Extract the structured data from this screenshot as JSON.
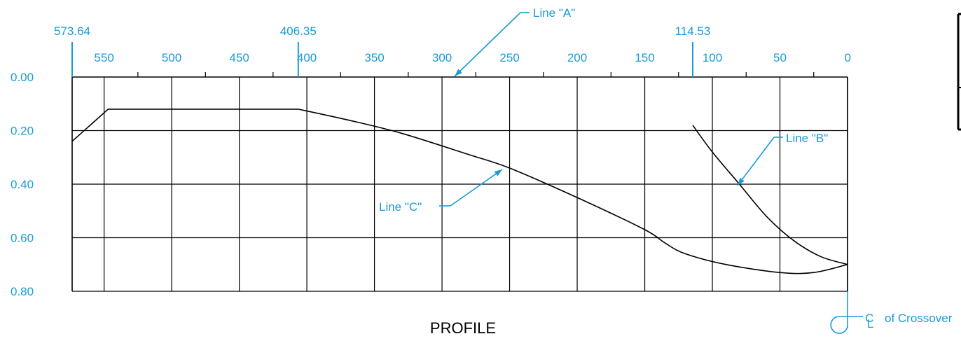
{
  "colors": {
    "annotation": "#1a9bd7",
    "ink": "#000000",
    "background": "#ffffff"
  },
  "profile": {
    "title": "PROFILE",
    "x_ticks": [
      550,
      500,
      450,
      400,
      350,
      300,
      250,
      200,
      150,
      100,
      50,
      0
    ],
    "x_tick_labels": [
      "550",
      "500",
      "450",
      "400",
      "350",
      "300",
      "250",
      "200",
      "150",
      "100",
      "50",
      "0"
    ],
    "y_ticks": [
      0.0,
      0.2,
      0.4,
      0.6,
      0.8
    ],
    "y_tick_labels": [
      "0.00",
      "0.20",
      "0.40",
      "0.60",
      "0.80"
    ],
    "x_range": [
      573.64,
      0
    ],
    "y_range": [
      0.0,
      0.8
    ],
    "station_marks": [
      {
        "value": 573.64,
        "label": "573.64"
      },
      {
        "value": 406.35,
        "label": "406.35"
      },
      {
        "value": 114.53,
        "label": "114.53"
      }
    ],
    "lines": [
      {
        "label": "Line \"C\"",
        "points": [
          [
            573.64,
            0.24
          ],
          [
            547,
            0.12
          ],
          [
            406.35,
            0.12
          ],
          [
            370,
            0.16
          ],
          [
            330,
            0.21
          ],
          [
            280,
            0.29
          ],
          [
            250,
            0.34
          ],
          [
            200,
            0.45
          ],
          [
            150,
            0.57
          ],
          [
            135,
            0.62
          ],
          [
            120,
            0.66
          ],
          [
            90,
            0.7
          ],
          [
            50,
            0.73
          ],
          [
            25,
            0.73
          ],
          [
            0,
            0.7
          ]
        ]
      },
      {
        "label": "Line \"B\"",
        "points": [
          [
            114.53,
            0.18
          ],
          [
            100,
            0.28
          ],
          [
            80,
            0.4
          ],
          [
            60,
            0.52
          ],
          [
            40,
            0.61
          ],
          [
            20,
            0.67
          ],
          [
            0,
            0.7
          ]
        ]
      }
    ],
    "callouts": [
      {
        "text": "Line \"A\"",
        "target_x": 300,
        "target_y": 0.0
      },
      {
        "text": "Line \"B\"",
        "target_x": 80,
        "target_y": 0.4
      },
      {
        "text": "Line \"C\"",
        "target_x": 258,
        "target_y": 0.34
      }
    ],
    "centerline_label": "of Crossover",
    "centerline_symbol": "CL"
  }
}
